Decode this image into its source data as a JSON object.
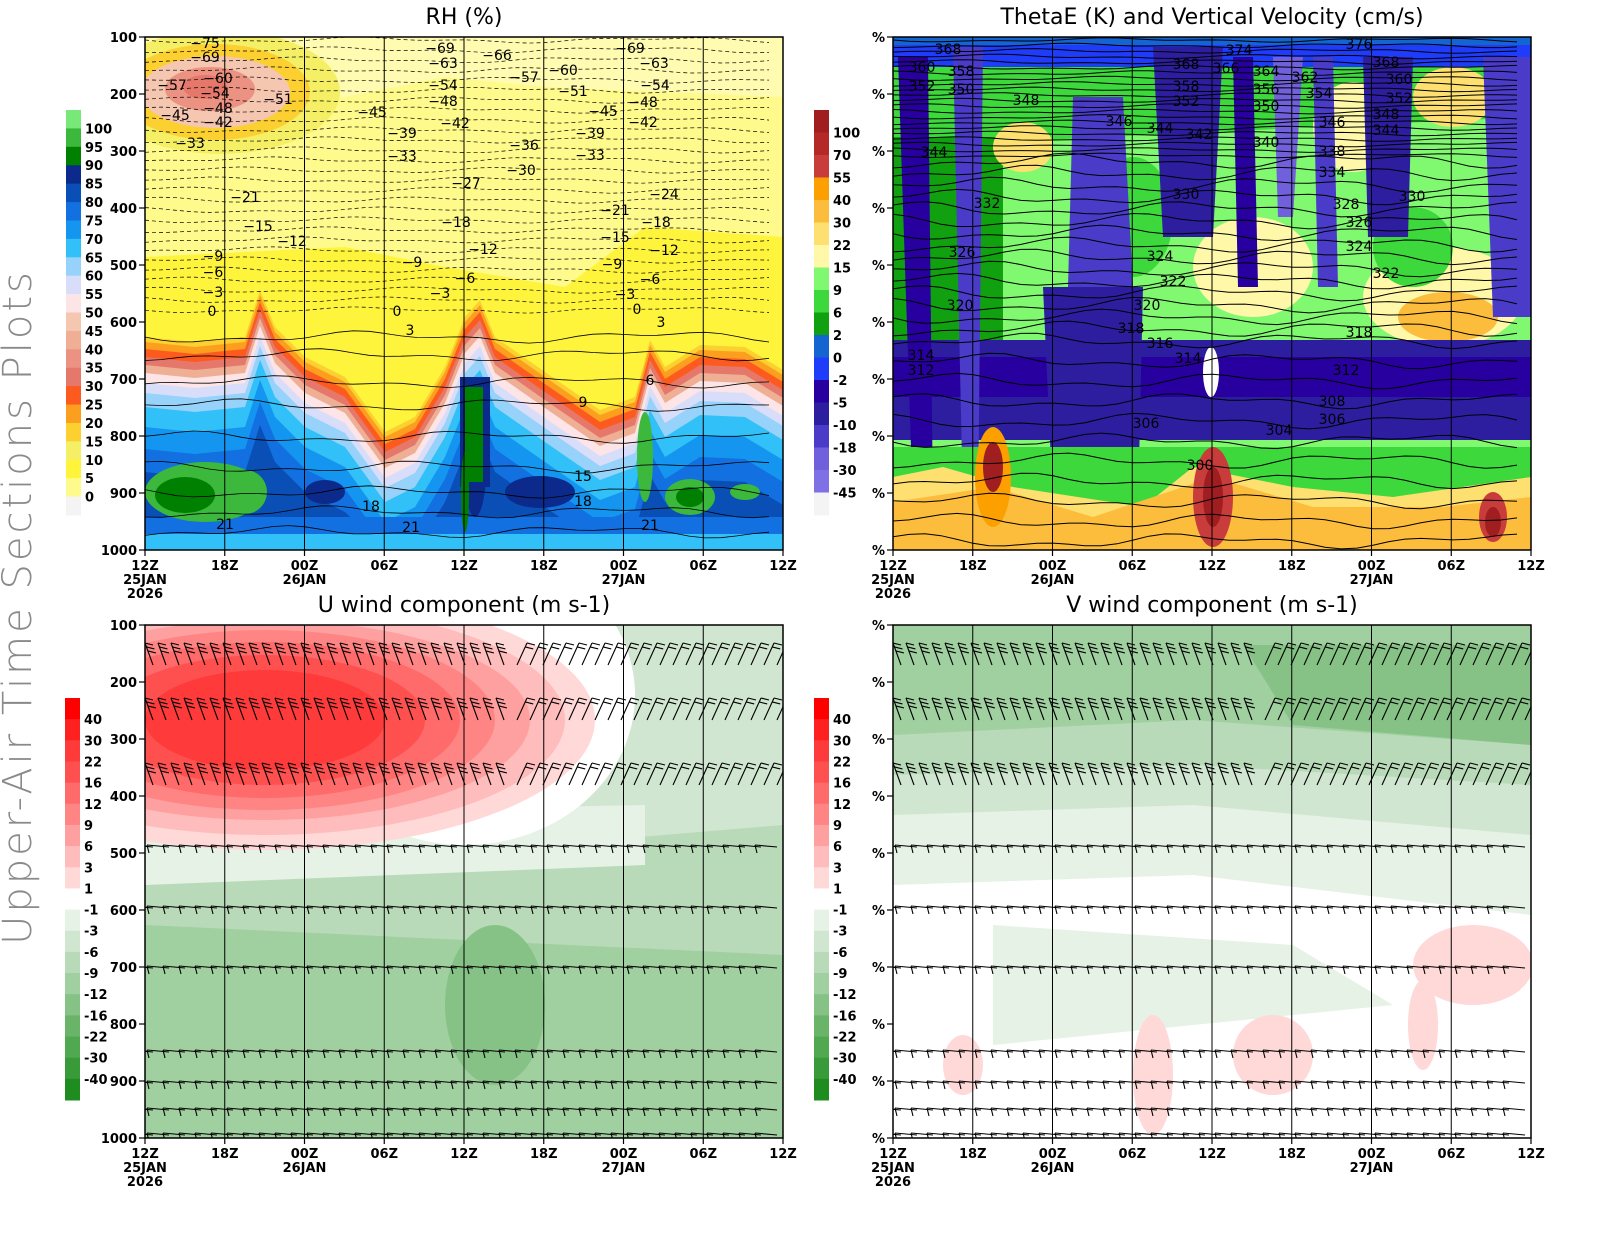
{
  "page": {
    "side_title": "Upper-Air Time Sections Plots"
  },
  "x_axis": {
    "ticks": [
      "12Z",
      "18Z",
      "00Z",
      "06Z",
      "12Z",
      "18Z",
      "00Z",
      "06Z",
      "12Z"
    ],
    "dates": [
      "25JAN",
      "26JAN",
      "27JAN"
    ],
    "year": "2026"
  },
  "chart_data": [
    {
      "type": "heatmap",
      "title": "RH (%)",
      "yticks": [
        "100",
        "200",
        "300",
        "400",
        "500",
        "600",
        "700",
        "800",
        "900",
        "1000"
      ],
      "ylim": [
        1000,
        100
      ],
      "colorbar": {
        "labels": [
          "100",
          "95",
          "90",
          "85",
          "80",
          "75",
          "70",
          "65",
          "60",
          "55",
          "50",
          "45",
          "40",
          "35",
          "30",
          "25",
          "20",
          "15",
          "10",
          "5",
          "0"
        ],
        "colors": [
          "#78e878",
          "#3cb83c",
          "#008000",
          "#0b2a8c",
          "#0a4fb5",
          "#1270e0",
          "#1496f0",
          "#32c0f8",
          "#96d2fa",
          "#d8defa",
          "#fde4e6",
          "#f5c6b0",
          "#efaf94",
          "#ec9282",
          "#e5786a",
          "#fc5a1e",
          "#fc9e1e",
          "#fcd030",
          "#f4ef64",
          "#fff43c",
          "#fffa8c",
          "#f4f4f4"
        ]
      },
      "contour_labels": [
        "-75",
        "-69",
        "-60",
        "-57",
        "-54",
        "-48",
        "-45",
        "-42",
        "-51",
        "-33",
        "-21",
        "-15",
        "-12",
        "-9",
        "-6",
        "-3",
        "0",
        "-45",
        "-39",
        "-33",
        "-69",
        "-63",
        "-54",
        "-48",
        "-42",
        "-66",
        "-57",
        "-60",
        "-51",
        "-36",
        "-30",
        "-27",
        "-18",
        "-12",
        "-6",
        "-3",
        "-9",
        "0",
        "3",
        "-69",
        "-63",
        "-54",
        "-48",
        "-45",
        "-42",
        "-39",
        "-33",
        "-24",
        "-21",
        "-18",
        "-15",
        "-12",
        "-9",
        "-6",
        "-3",
        "0",
        "3",
        "6",
        "9",
        "15",
        "18",
        "18",
        "21",
        "21",
        "21"
      ]
    },
    {
      "type": "heatmap",
      "title": "ThetaE (K) and Vertical Velocity (cm/s)",
      "yticks": [
        "%",
        "%",
        "%",
        "%",
        "%",
        "%",
        "%",
        "%",
        "%",
        "%"
      ],
      "colorbar": {
        "labels": [
          "100",
          "70",
          "55",
          "40",
          "30",
          "22",
          "15",
          "9",
          "6",
          "2",
          "0",
          "-2",
          "-5",
          "-10",
          "-18",
          "-30",
          "-45"
        ],
        "colors": [
          "#a01e20",
          "#b42828",
          "#c83c3c",
          "#fca000",
          "#fcbc3c",
          "#fde070",
          "#fef8a8",
          "#80f870",
          "#3cd83c",
          "#10a010",
          "#1464d2",
          "#1e3cfa",
          "#2800a0",
          "#2d1ea0",
          "#4a3cc8",
          "#7060dc",
          "#8070e6",
          "#f4f4f4"
        ]
      },
      "contour_labels": [
        "368",
        "360",
        "358",
        "352",
        "350",
        "348",
        "346",
        "344",
        "342",
        "344",
        "332",
        "326",
        "320",
        "314",
        "312",
        "330",
        "324",
        "322",
        "320",
        "318",
        "316",
        "314",
        "306",
        "300",
        "374",
        "368",
        "366",
        "364",
        "362",
        "358",
        "356",
        "354",
        "352",
        "350",
        "340",
        "376",
        "368",
        "360",
        "352",
        "348",
        "346",
        "344",
        "338",
        "334",
        "330",
        "328",
        "326",
        "324",
        "322",
        "318",
        "312",
        "308",
        "306",
        "304"
      ]
    },
    {
      "type": "heatmap",
      "title": "U wind component (m s-1)",
      "yticks": [
        "100",
        "200",
        "300",
        "400",
        "500",
        "600",
        "700",
        "800",
        "900",
        "1000"
      ],
      "ylim": [
        1000,
        100
      ],
      "colorbar": {
        "labels": [
          "40",
          "30",
          "22",
          "16",
          "12",
          "9",
          "6",
          "3",
          "1",
          "-1",
          "-3",
          "-6",
          "-9",
          "-12",
          "-16",
          "-22",
          "-30",
          "-40"
        ],
        "colors": [
          "#ff0000",
          "#ff2020",
          "#ff3a3a",
          "#ff5050",
          "#ff6a6a",
          "#ff8585",
          "#ffa0a0",
          "#ffbcbc",
          "#ffd8d8",
          "#ffffff",
          "#e6f2e6",
          "#d0e6d0",
          "#b8dab8",
          "#a0cfa0",
          "#86c286",
          "#6ab46a",
          "#50a850",
          "#389a38",
          "#1e8c1e"
        ]
      }
    },
    {
      "type": "heatmap",
      "title": "V wind component (m s-1)",
      "yticks": [
        "%",
        "%",
        "%",
        "%",
        "%",
        "%",
        "%",
        "%",
        "%",
        "%"
      ],
      "colorbar": {
        "labels": [
          "40",
          "30",
          "22",
          "16",
          "12",
          "9",
          "6",
          "3",
          "1",
          "-1",
          "-3",
          "-6",
          "-9",
          "-12",
          "-16",
          "-22",
          "-30",
          "-40"
        ],
        "colors": [
          "#ff0000",
          "#ff2020",
          "#ff3a3a",
          "#ff5050",
          "#ff6a6a",
          "#ff8585",
          "#ffa0a0",
          "#ffbcbc",
          "#ffd8d8",
          "#ffffff",
          "#e6f2e6",
          "#d0e6d0",
          "#b8dab8",
          "#a0cfa0",
          "#86c286",
          "#6ab46a",
          "#50a850",
          "#389a38",
          "#1e8c1e"
        ]
      }
    }
  ]
}
